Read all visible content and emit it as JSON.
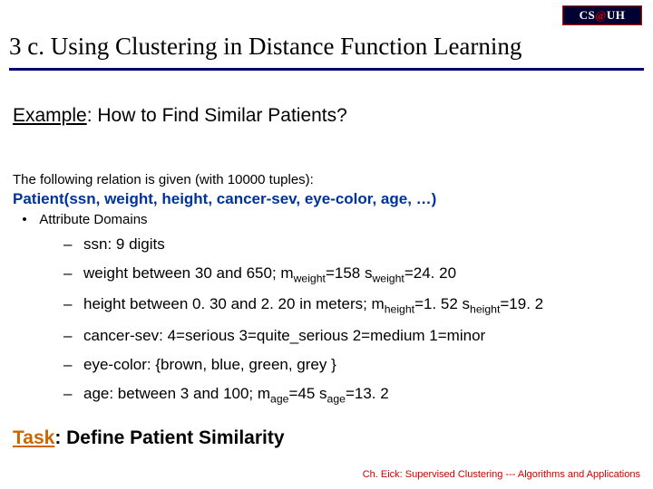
{
  "logo": {
    "left": "CS",
    "at": "@",
    "right": "UH"
  },
  "title": "3 c. Using Clustering in Distance Function Learning",
  "example": {
    "label": "Example",
    "text": ": How to Find Similar Patients?"
  },
  "intro": "The following relation is given (with 10000 tuples):",
  "schema": "Patient(ssn, weight, height, cancer-sev, eye-color, age, …)",
  "attr_head": {
    "bullet": "•",
    "text": "Attribute Domains"
  },
  "items": [
    {
      "html": "ssn: 9 digits"
    },
    {
      "html": "weight between 30 and 650; m<sub>weight</sub>=158 s<sub>weight</sub>=24. 20"
    },
    {
      "html": "height between 0. 30 and 2. 20 in meters; m<sub>height</sub>=1. 52 s<sub>height</sub>=19. 2"
    },
    {
      "html": "cancer-sev: 4=serious 3=quite_serious 2=medium 1=minor"
    },
    {
      "html": "eye-color: {brown, blue, green, grey }"
    },
    {
      "html": "age: between 3 and 100; m<sub>age</sub>=45 s<sub>age</sub>=13. 2"
    }
  ],
  "task": {
    "label": "Task",
    "text": ": Define Patient Similarity"
  },
  "footer": "Ch. Eick: Supervised Clustering --- Algorithms and Applications"
}
